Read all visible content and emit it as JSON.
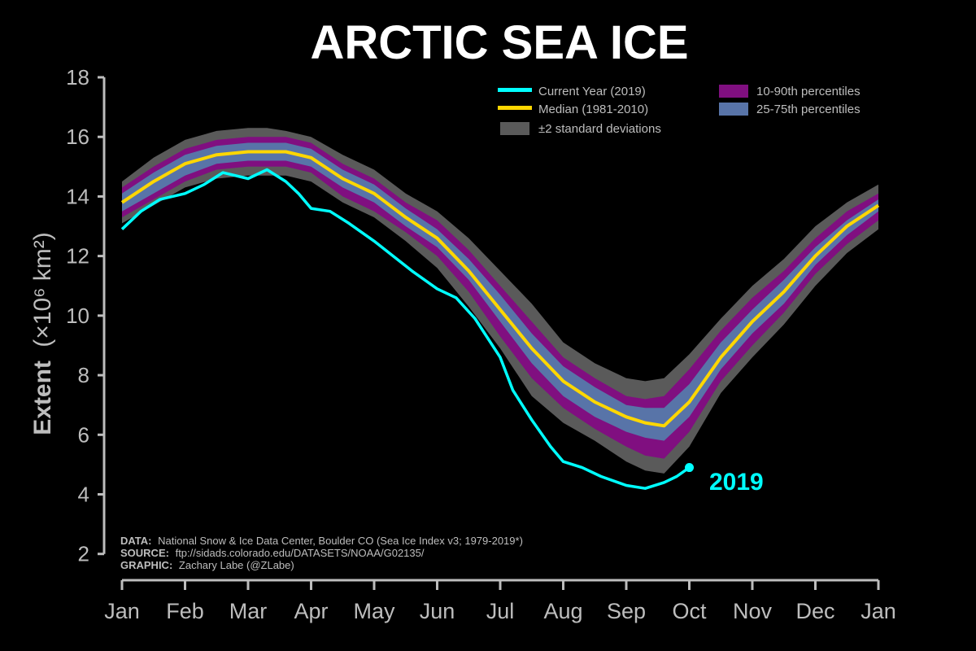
{
  "colors": {
    "background": "#000000",
    "text": "#bdbdbd",
    "current": "#00ffff",
    "median": "#ffd700",
    "std2": "#5a5a5a",
    "p10_90": "#800f80",
    "p25_75": "#5874a8"
  },
  "chart_data": {
    "type": "line",
    "title": "ARCTIC SEA ICE",
    "ylabel_main": "Extent",
    "ylabel_unit": "(×10⁶ km²)",
    "x_categories": [
      "Jan",
      "Feb",
      "Mar",
      "Apr",
      "May",
      "Jun",
      "Jul",
      "Aug",
      "Sep",
      "Oct",
      "Nov",
      "Dec",
      "Jan"
    ],
    "yticks": [
      2,
      4,
      6,
      8,
      10,
      12,
      14,
      16,
      18
    ],
    "ylim": [
      1.2,
      18
    ],
    "legend": {
      "current": "Current Year (2019)",
      "median": "Median (1981-2010)",
      "std": "±2 standard deviations",
      "p10_90": "10-90th percentiles",
      "p25_75": "25-75th percentiles"
    },
    "current_label": "2019",
    "credits": [
      {
        "key": "DATA:",
        "text": "National Snow & Ice Data Center, Boulder CO (Sea Ice Index v3; 1979-2019*)"
      },
      {
        "key": "SOURCE:",
        "text": "ftp://sidads.colorado.edu/DATASETS/NOAA/G02135/"
      },
      {
        "key": "GRAPHIC:",
        "text": "Zachary Labe (@ZLabe)"
      }
    ],
    "median": {
      "x_month": [
        0,
        0.5,
        1,
        1.5,
        2,
        2.3,
        2.6,
        3,
        3.5,
        4,
        4.5,
        5,
        5.5,
        6,
        6.5,
        7,
        7.5,
        8,
        8.3,
        8.6,
        9,
        9.5,
        10,
        10.5,
        11,
        11.5,
        12
      ],
      "y": [
        13.8,
        14.5,
        15.1,
        15.4,
        15.5,
        15.5,
        15.5,
        15.3,
        14.6,
        14.1,
        13.3,
        12.6,
        11.5,
        10.2,
        8.9,
        7.8,
        7.1,
        6.6,
        6.4,
        6.3,
        7.1,
        8.6,
        9.8,
        10.8,
        12.0,
        13.0,
        13.7
      ]
    },
    "bands": {
      "std2_hi": [
        14.5,
        15.3,
        15.9,
        16.2,
        16.3,
        16.3,
        16.2,
        16.0,
        15.4,
        14.9,
        14.1,
        13.5,
        12.6,
        11.5,
        10.4,
        9.1,
        8.4,
        7.9,
        7.8,
        7.9,
        8.7,
        9.9,
        11.0,
        11.9,
        13.0,
        13.8,
        14.4
      ],
      "std2_lo": [
        13.1,
        13.7,
        14.3,
        14.6,
        14.7,
        14.7,
        14.7,
        14.5,
        13.8,
        13.3,
        12.5,
        11.6,
        10.3,
        8.9,
        7.3,
        6.4,
        5.8,
        5.1,
        4.8,
        4.7,
        5.6,
        7.4,
        8.6,
        9.7,
        11.0,
        12.1,
        12.9
      ],
      "p10_hi": [
        14.3,
        15.0,
        15.6,
        15.9,
        16.0,
        16.0,
        16.0,
        15.8,
        15.1,
        14.6,
        13.8,
        13.2,
        12.2,
        11.0,
        9.8,
        8.6,
        7.9,
        7.3,
        7.2,
        7.3,
        8.2,
        9.5,
        10.6,
        11.5,
        12.6,
        13.5,
        14.1
      ],
      "p10_lo": [
        13.3,
        13.9,
        14.5,
        14.9,
        15.0,
        15.0,
        15.0,
        14.8,
        14.0,
        13.5,
        12.8,
        12.0,
        10.8,
        9.3,
        7.9,
        6.9,
        6.2,
        5.6,
        5.3,
        5.2,
        6.1,
        7.8,
        9.0,
        10.1,
        11.4,
        12.4,
        13.2
      ],
      "p25_hi": [
        14.1,
        14.8,
        15.4,
        15.7,
        15.8,
        15.8,
        15.8,
        15.6,
        14.9,
        14.4,
        13.6,
        12.9,
        11.9,
        10.7,
        9.4,
        8.3,
        7.6,
        7.0,
        6.9,
        6.9,
        7.7,
        9.1,
        10.2,
        11.2,
        12.3,
        13.2,
        13.9
      ],
      "p25_lo": [
        13.5,
        14.1,
        14.7,
        15.1,
        15.2,
        15.2,
        15.2,
        15.0,
        14.3,
        13.8,
        13.0,
        12.3,
        11.2,
        9.8,
        8.4,
        7.3,
        6.6,
        6.1,
        5.9,
        5.8,
        6.6,
        8.2,
        9.4,
        10.4,
        11.7,
        12.7,
        13.5
      ]
    },
    "current": {
      "x_month": [
        0,
        0.3,
        0.6,
        1,
        1.3,
        1.6,
        2,
        2.3,
        2.6,
        2.8,
        3,
        3.3,
        3.6,
        4,
        4.3,
        4.6,
        5,
        5.3,
        5.6,
        6,
        6.2,
        6.5,
        6.8,
        7,
        7.3,
        7.6,
        8,
        8.3,
        8.6,
        8.8,
        9.0
      ],
      "y": [
        12.9,
        13.5,
        13.9,
        14.1,
        14.4,
        14.8,
        14.6,
        14.9,
        14.5,
        14.1,
        13.6,
        13.5,
        13.1,
        12.5,
        12.0,
        11.5,
        10.9,
        10.6,
        9.9,
        8.6,
        7.5,
        6.5,
        5.6,
        5.1,
        4.9,
        4.6,
        4.3,
        4.2,
        4.4,
        4.6,
        4.9
      ]
    }
  }
}
